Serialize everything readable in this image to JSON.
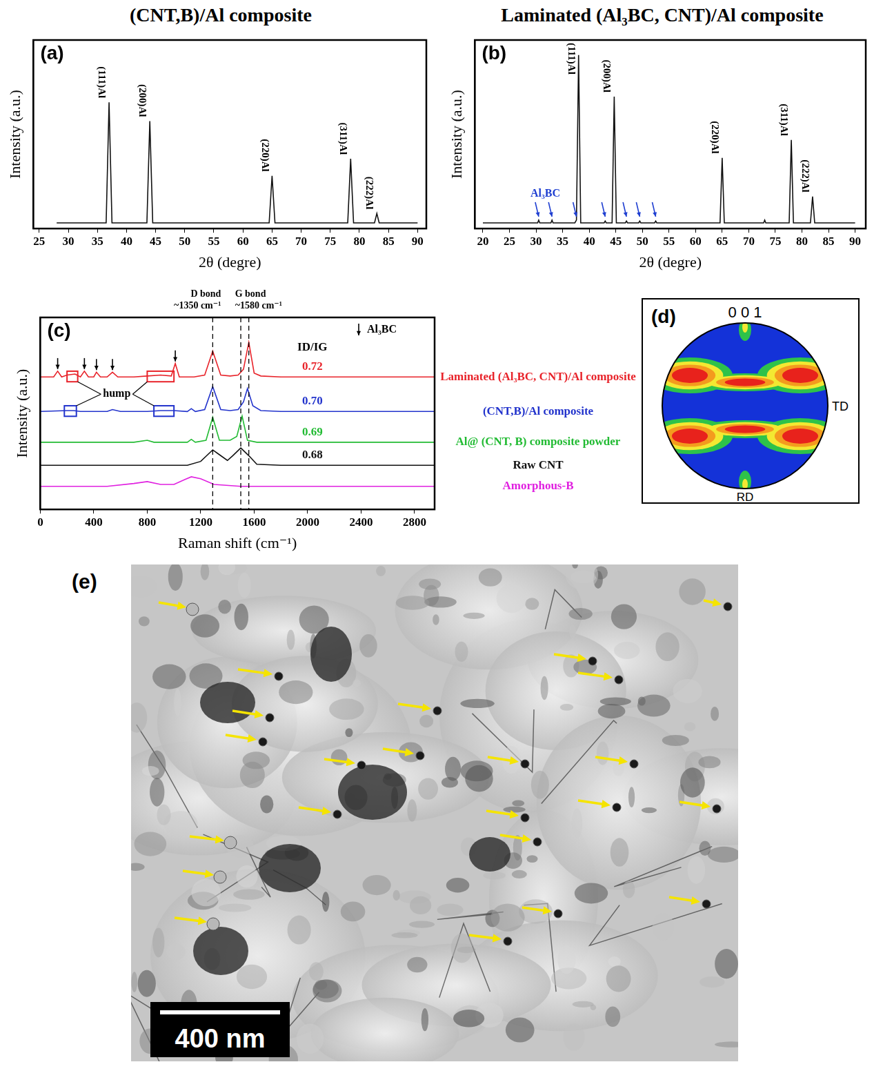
{
  "chart_data": [
    {
      "type": "line",
      "panel": "(a)",
      "title": "(CNT,B)/Al composite",
      "x_label": "2θ (degre)",
      "y_label": "Intensity (a.u.)",
      "xlim": [
        24,
        91.5
      ],
      "xticks": [
        25,
        30,
        35,
        40,
        45,
        50,
        55,
        60,
        65,
        70,
        75,
        80,
        85,
        90
      ],
      "ylim": [
        0,
        100
      ],
      "tick_labels": "x",
      "grid": false,
      "series": [
        {
          "color": "#111111",
          "x": [
            28,
            36.5,
            37,
            37.5,
            43.5,
            44,
            44.5,
            64.5,
            65,
            65.5,
            78,
            78.5,
            79,
            82.6,
            83,
            83.4,
            90
          ],
          "values": [
            3,
            3,
            67,
            3,
            3,
            57,
            3,
            3,
            28,
            3,
            3,
            37,
            3,
            3,
            8,
            3,
            3
          ]
        }
      ],
      "peak_labels": [
        {
          "x": 37,
          "label": "(111)Al"
        },
        {
          "x": 44,
          "label": "(200)Al"
        },
        {
          "x": 65,
          "label": "(220)Al"
        },
        {
          "x": 78.5,
          "label": "(311)Al"
        },
        {
          "x": 83,
          "label": "(222)Al"
        }
      ]
    },
    {
      "type": "line",
      "panel": "(b)",
      "title": "Laminated (Al₃BC, CNT)/Al composite",
      "x_label": "2θ (degre)",
      "y_label": "Intensity (a.u.)",
      "xlim": [
        18.5,
        92
      ],
      "xticks": [
        20,
        25,
        30,
        35,
        40,
        45,
        50,
        55,
        60,
        65,
        70,
        75,
        80,
        85,
        90
      ],
      "ylim": [
        0,
        100
      ],
      "tick_labels": "x",
      "grid": false,
      "series": [
        {
          "color": "#111111",
          "x": [
            20,
            30.3,
            30.5,
            30.7,
            32.8,
            33,
            33.2,
            37.3,
            37.6,
            38,
            38.4,
            42.8,
            43,
            43.2,
            44.3,
            44.7,
            45.1,
            46.8,
            47,
            47.2,
            49.3,
            49.5,
            49.7,
            52.3,
            52.5,
            52.7,
            64.6,
            65,
            65.4,
            72.8,
            73,
            73.2,
            77.6,
            78,
            78.4,
            81.6,
            82,
            82.4,
            90
          ],
          "values": [
            3,
            3,
            4.5,
            3,
            3,
            4.5,
            3,
            3,
            4.5,
            92,
            3,
            3,
            4,
            3,
            3,
            70,
            3,
            3,
            4,
            3,
            3,
            4,
            3,
            3,
            4,
            3,
            3,
            37.5,
            3,
            3,
            4.5,
            3,
            3,
            47,
            3,
            3,
            17,
            3,
            3
          ]
        }
      ],
      "peak_labels": [
        {
          "x": 38,
          "label": "(111)Al"
        },
        {
          "x": 44.7,
          "label": "(200)Al"
        },
        {
          "x": 65,
          "label": "(220)Al"
        },
        {
          "x": 78,
          "label": "(311)Al"
        },
        {
          "x": 82,
          "label": "(222)Al"
        }
      ],
      "markers": [
        30.5,
        33,
        37.6,
        43,
        47,
        49.5,
        52.5
      ],
      "marker_label": "Al₃BC",
      "marker_color": "#1f3fd1"
    },
    {
      "type": "line",
      "panel": "(c)",
      "x_label": "Raman shift (cm⁻¹)",
      "y_label": "Intensity (a.u.)",
      "xlim": [
        0,
        2950
      ],
      "xticks": [
        0,
        400,
        800,
        1200,
        1600,
        2000,
        2400,
        2800
      ],
      "ylim": [
        0,
        100
      ],
      "tick_labels": "x",
      "grid": false,
      "vlines": [
        1290,
        1500,
        1560
      ],
      "annotations": [
        {
          "x": 1290,
          "lines": [
            "D bond",
            "~1350 cm⁻¹"
          ]
        },
        {
          "x": 1560,
          "lines": [
            "G bond",
            "~1580 cm⁻¹"
          ]
        }
      ],
      "marker_label": "Al₃BC",
      "ratio_title": "ID/IG",
      "hump_label": "hump",
      "series": [
        {
          "name": "Laminated (Al₃BC, CNT)/Al composite",
          "color": "#e8232a",
          "ratio": 0.72,
          "x": [
            0,
            100,
            130,
            160,
            200,
            260,
            300,
            330,
            360,
            400,
            420,
            450,
            500,
            540,
            580,
            700,
            800,
            900,
            980,
            1010,
            1040,
            1150,
            1230,
            1290,
            1350,
            1420,
            1480,
            1520,
            1560,
            1600,
            1650,
            1800,
            2200,
            2600,
            2950
          ],
          "values": [
            69,
            69,
            72,
            69,
            70,
            70.5,
            69,
            72,
            69,
            69,
            71.5,
            69,
            69,
            71.5,
            69,
            69,
            69.5,
            70,
            69.5,
            76,
            69,
            69,
            70,
            82.5,
            70,
            69.5,
            70,
            73,
            87,
            71,
            69.5,
            69,
            69,
            69,
            69
          ],
          "markers": [
            130,
            330,
            420,
            540,
            1010
          ],
          "humps": [
            [
              200,
              280
            ],
            [
              800,
              1000
            ]
          ]
        },
        {
          "name": "(CNT,B)/Al composite",
          "color": "#2233cc",
          "ratio": 0.7,
          "x": [
            0,
            200,
            250,
            300,
            500,
            540,
            600,
            800,
            900,
            1000,
            1100,
            1130,
            1160,
            1230,
            1290,
            1350,
            1420,
            1480,
            1520,
            1550,
            1590,
            1650,
            1800,
            2200,
            2600,
            2950
          ],
          "values": [
            51,
            51.5,
            51.5,
            51,
            51,
            52,
            51,
            51,
            51.5,
            51.5,
            51,
            52.5,
            51,
            52,
            64,
            52,
            51.5,
            52,
            56,
            63,
            54,
            51.5,
            51,
            51,
            51,
            51
          ],
          "humps": [
            [
              180,
              270
            ],
            [
              850,
              1000
            ]
          ]
        },
        {
          "name": "Al@ (CNT, B) composite powder",
          "color": "#22bb33",
          "ratio": 0.69,
          "x": [
            0,
            700,
            800,
            850,
            1100,
            1130,
            1160,
            1240,
            1290,
            1340,
            1420,
            1470,
            1510,
            1550,
            1620,
            1800,
            2200,
            2600,
            2950
          ],
          "values": [
            35,
            35,
            36,
            35,
            35,
            36.5,
            35,
            36,
            48,
            36,
            36,
            38,
            48.6,
            36,
            35,
            35,
            35,
            35,
            35
          ]
        },
        {
          "name": "Raw CNT",
          "color": "#111111",
          "ratio": 0.68,
          "x": [
            0,
            1100,
            1200,
            1260,
            1290,
            1330,
            1400,
            1440,
            1500,
            1560,
            1620,
            1800,
            2200,
            2950
          ],
          "values": [
            23,
            23,
            25,
            29,
            31,
            29,
            25.5,
            28,
            32,
            28,
            23.5,
            23,
            23,
            23
          ]
        },
        {
          "name": "Amorphous-B",
          "color": "#e020e0",
          "x": [
            0,
            500,
            700,
            800,
            900,
            1000,
            1080,
            1130,
            1200,
            1300,
            1500,
            2000,
            2950
          ],
          "values": [
            12,
            12,
            13.5,
            14.5,
            13,
            13,
            15.5,
            17,
            16,
            13,
            12,
            12,
            12
          ]
        }
      ]
    }
  ],
  "pole_figure": {
    "panel": "(d)",
    "top_label": "0 0 1",
    "right_label": "TD",
    "bottom_label": "RD"
  },
  "micrograph": {
    "panel": "(e)",
    "scale_bar": "400 nm"
  }
}
